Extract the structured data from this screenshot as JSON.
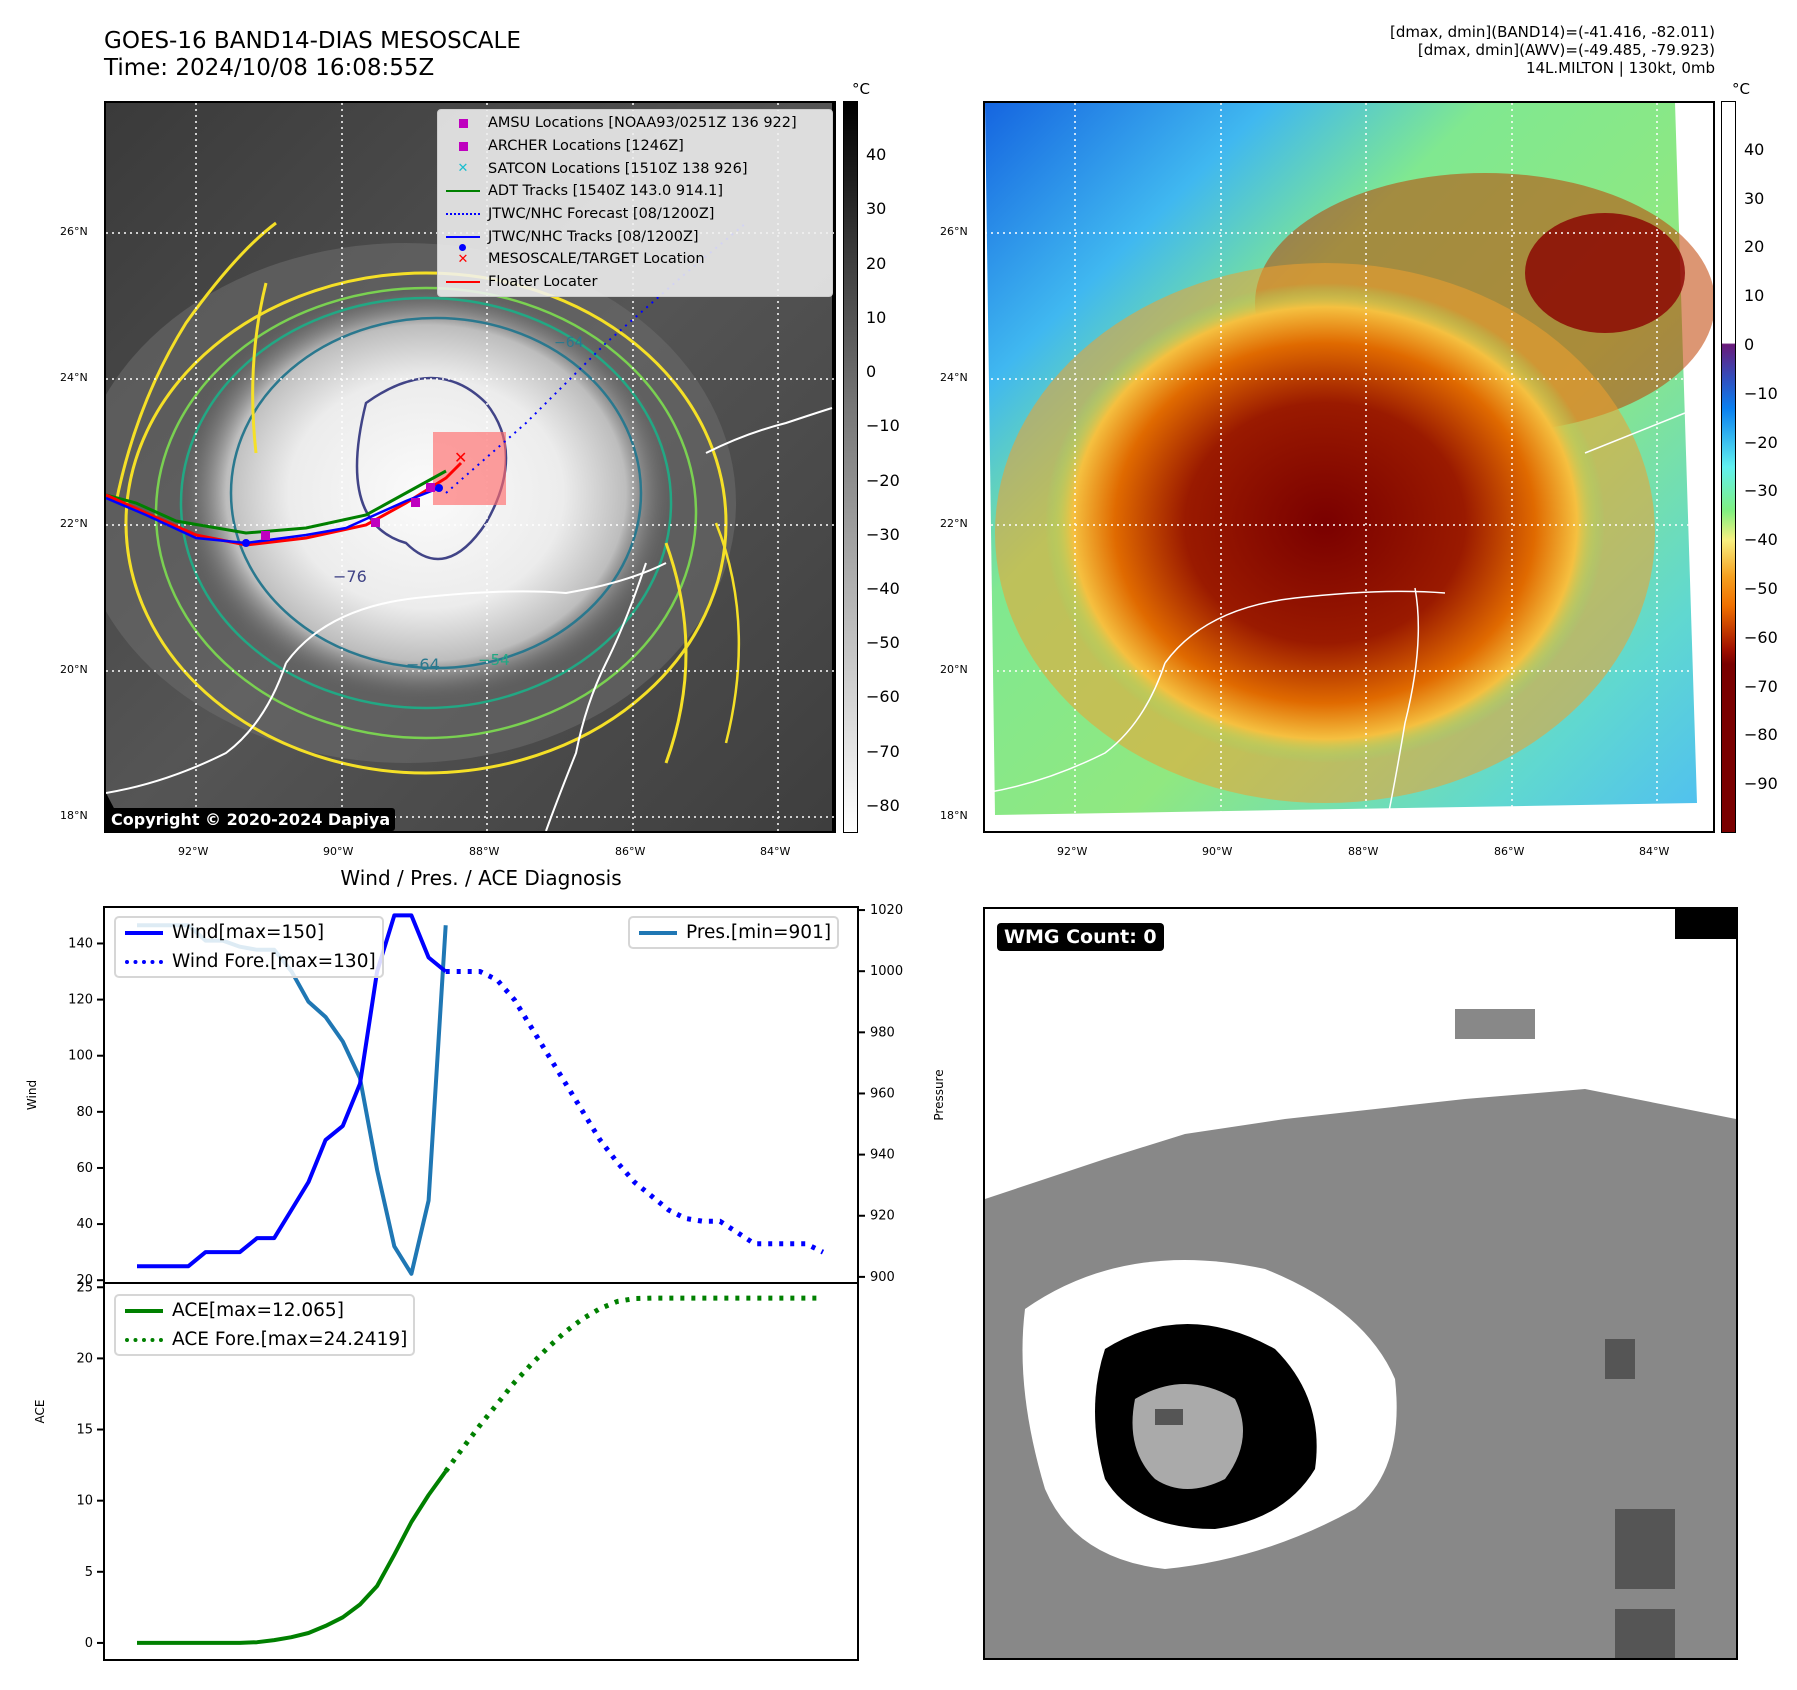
{
  "header": {
    "title_line1": "GOES-16 BAND14-DIAS MESOSCALE",
    "title_line2": "Time: 2024/10/08 16:08:55Z",
    "info_line1": "[dmax, dmin](BAND14)=(-41.416, -82.011)",
    "info_line2": "[dmax, dmin](AWV)=(-49.485, -79.923)",
    "info_line3": "14L.MILTON | 130kt, 0mb"
  },
  "left_map": {
    "lat_labels": [
      "26°N",
      "24°N",
      "22°N",
      "20°N",
      "18°N"
    ],
    "lon_labels": [
      "92°W",
      "90°W",
      "88°W",
      "86°W",
      "84°W"
    ],
    "colorbar_unit": "°C",
    "colorbar_ticks": [
      "40",
      "30",
      "20",
      "10",
      "0",
      "−10",
      "−20",
      "−30",
      "−40",
      "−50",
      "−60",
      "−70",
      "−80"
    ],
    "contour_labels": [
      "−64",
      "−76",
      "−64",
      "−54"
    ],
    "copyright": "Copyright © 2020-2024 Dapiya",
    "legend": [
      {
        "label": "AMSU Locations [NOAA93/0251Z 136 922]",
        "symbol": "square",
        "color": "#bf00bf"
      },
      {
        "label": "ARCHER Locations [1246Z]",
        "symbol": "square",
        "color": "#bf00bf"
      },
      {
        "label": "SATCON Locations [1510Z 138 926]",
        "symbol": "x",
        "color": "#17becf"
      },
      {
        "label": "ADT Tracks [1540Z 143.0 914.1]",
        "symbol": "line",
        "color": "#008000"
      },
      {
        "label": "JTWC/NHC Forecast [08/1200Z]",
        "symbol": "dotted",
        "color": "#0000ff"
      },
      {
        "label": "JTWC/NHC Tracks [08/1200Z]",
        "symbol": "line-dot",
        "color": "#0000ff"
      },
      {
        "label": "MESOSCALE/TARGET Location",
        "symbol": "x",
        "color": "#ff0000"
      },
      {
        "label": "Floater Locater",
        "symbol": "line",
        "color": "#ff0000"
      }
    ]
  },
  "right_map": {
    "lat_labels": [
      "26°N",
      "24°N",
      "22°N",
      "20°N",
      "18°N"
    ],
    "lon_labels": [
      "92°W",
      "90°W",
      "88°W",
      "86°W",
      "84°W"
    ],
    "colorbar_unit": "°C",
    "colorbar_ticks": [
      "40",
      "30",
      "20",
      "10",
      "0",
      "−10",
      "−20",
      "−30",
      "−40",
      "−50",
      "−60",
      "−70",
      "−80",
      "−90"
    ]
  },
  "wmg": {
    "badge": "WMG Count: 0"
  },
  "chart_data": [
    {
      "type": "line",
      "title": "Wind / Pres. / ACE Diagnosis",
      "ylabel": "Wind",
      "y2label": "Pressure",
      "ylim": [
        19,
        153
      ],
      "y2lim": [
        898,
        1021
      ],
      "yticks": [
        20,
        40,
        60,
        80,
        100,
        120,
        140
      ],
      "y2ticks": [
        900,
        920,
        940,
        960,
        980,
        1000,
        1020
      ],
      "x_count": 41,
      "series": [
        {
          "name": "Wind[max=150]",
          "axis": "left",
          "style": "solid",
          "color": "#0000ff",
          "x": [
            0,
            1,
            2,
            3,
            4,
            5,
            6,
            7,
            8,
            9,
            10,
            11,
            12,
            13,
            14,
            15,
            16,
            17,
            18,
            19,
            20
          ],
          "values": [
            25,
            25,
            25,
            25,
            30,
            30,
            30,
            35,
            35,
            45,
            55,
            70,
            75,
            90,
            130,
            150,
            150,
            135,
            130,
            null,
            null
          ]
        },
        {
          "name": "Wind Fore.[max=130]",
          "axis": "left",
          "style": "dotted",
          "color": "#0000ff",
          "x": [
            18,
            19,
            20,
            21,
            22,
            23,
            24,
            25,
            26,
            27,
            28,
            29,
            30,
            31,
            32,
            33,
            34,
            35,
            36,
            37,
            38,
            39,
            40
          ],
          "values": [
            130,
            130,
            130,
            127,
            120,
            110,
            100,
            90,
            80,
            70,
            62,
            55,
            50,
            45,
            42,
            41,
            41,
            37,
            33,
            33,
            33,
            33,
            30
          ]
        },
        {
          "name": "Pres.[min=901]",
          "axis": "right",
          "style": "solid",
          "color": "#1f77b4",
          "x": [
            0,
            1,
            2,
            3,
            4,
            5,
            6,
            7,
            8,
            9,
            10,
            11,
            12,
            13,
            14,
            15,
            16,
            17,
            18
          ],
          "values": [
            1015,
            1015,
            1015,
            1015,
            1010,
            1010,
            1008,
            1007,
            1007,
            1000,
            990,
            985,
            977,
            965,
            935,
            910,
            901,
            925,
            1015
          ]
        }
      ]
    },
    {
      "type": "line",
      "ylabel": "ACE",
      "ylim": [
        -1.2,
        25.3
      ],
      "yticks": [
        0,
        5,
        10,
        15,
        20,
        25
      ],
      "x_count": 41,
      "series": [
        {
          "name": "ACE[max=12.065]",
          "style": "solid",
          "color": "#008000",
          "x": [
            0,
            1,
            2,
            3,
            4,
            5,
            6,
            7,
            8,
            9,
            10,
            11,
            12,
            13,
            14,
            15,
            16,
            17,
            18
          ],
          "values": [
            0,
            0,
            0,
            0,
            0,
            0,
            0,
            0.05,
            0.2,
            0.4,
            0.7,
            1.2,
            1.8,
            2.7,
            4.0,
            6.2,
            8.5,
            10.4,
            12.065
          ]
        },
        {
          "name": "ACE Fore.[max=24.2419]",
          "style": "dotted",
          "color": "#008000",
          "x": [
            18,
            19,
            20,
            21,
            22,
            23,
            24,
            25,
            26,
            27,
            28,
            29,
            30,
            31,
            32,
            33,
            34,
            35,
            36,
            37,
            38,
            39,
            40
          ],
          "values": [
            12.065,
            13.7,
            15.3,
            16.8,
            18.3,
            19.6,
            20.8,
            21.9,
            22.8,
            23.5,
            24.0,
            24.2,
            24.24,
            24.24,
            24.24,
            24.24,
            24.24,
            24.24,
            24.24,
            24.24,
            24.24,
            24.24,
            24.2419
          ]
        }
      ]
    }
  ]
}
